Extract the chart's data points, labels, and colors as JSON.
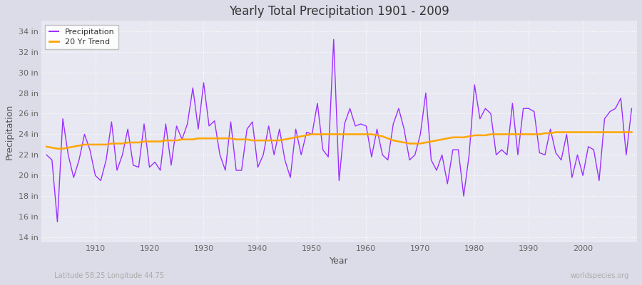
{
  "title": "Yearly Total Precipitation 1901 - 2009",
  "xlabel": "Year",
  "ylabel": "Precipitation",
  "lat_lon_label": "Latitude 58.25 Longitude 44.75",
  "source_label": "worldspecies.org",
  "precip_color": "#9B30FF",
  "trend_color": "#FFA500",
  "fig_bg_color": "#DCDCE8",
  "plot_bg_color": "#E8E8F2",
  "ylim": [
    13.5,
    35.0
  ],
  "yticks": [
    14,
    16,
    18,
    20,
    22,
    24,
    26,
    28,
    30,
    32,
    34
  ],
  "ytick_labels": [
    "14 in",
    "16 in",
    "18 in",
    "20 in",
    "22 in",
    "24 in",
    "26 in",
    "28 in",
    "30 in",
    "32 in",
    "34 in"
  ],
  "xlim": [
    1900,
    2010
  ],
  "xticks": [
    1910,
    1920,
    1930,
    1940,
    1950,
    1960,
    1970,
    1980,
    1990,
    2000
  ],
  "years": [
    1901,
    1902,
    1903,
    1904,
    1905,
    1906,
    1907,
    1908,
    1909,
    1910,
    1911,
    1912,
    1913,
    1914,
    1915,
    1916,
    1917,
    1918,
    1919,
    1920,
    1921,
    1922,
    1923,
    1924,
    1925,
    1926,
    1927,
    1928,
    1929,
    1930,
    1931,
    1932,
    1933,
    1934,
    1935,
    1936,
    1937,
    1938,
    1939,
    1940,
    1941,
    1942,
    1943,
    1944,
    1945,
    1946,
    1947,
    1948,
    1949,
    1950,
    1951,
    1952,
    1953,
    1954,
    1955,
    1956,
    1957,
    1958,
    1959,
    1960,
    1961,
    1962,
    1963,
    1964,
    1965,
    1966,
    1967,
    1968,
    1969,
    1970,
    1971,
    1972,
    1973,
    1974,
    1975,
    1976,
    1977,
    1978,
    1979,
    1980,
    1981,
    1982,
    1983,
    1984,
    1985,
    1986,
    1987,
    1988,
    1989,
    1990,
    1991,
    1992,
    1993,
    1994,
    1995,
    1996,
    1997,
    1998,
    1999,
    2000,
    2001,
    2002,
    2003,
    2004,
    2005,
    2006,
    2007,
    2008,
    2009
  ],
  "precip": [
    22.0,
    21.5,
    15.5,
    25.5,
    22.0,
    19.8,
    21.5,
    24.0,
    22.5,
    20.0,
    19.5,
    21.5,
    25.2,
    20.5,
    22.0,
    24.5,
    21.0,
    20.8,
    25.0,
    20.8,
    21.3,
    20.5,
    25.0,
    21.0,
    24.8,
    23.5,
    25.0,
    28.5,
    24.5,
    29.0,
    24.8,
    25.3,
    22.0,
    20.5,
    25.2,
    20.5,
    20.5,
    24.5,
    25.2,
    20.8,
    22.0,
    24.8,
    22.0,
    24.5,
    21.5,
    19.8,
    24.5,
    22.0,
    24.2,
    24.0,
    27.0,
    22.5,
    21.8,
    33.2,
    19.5,
    25.0,
    26.5,
    24.8,
    25.0,
    24.8,
    21.8,
    24.5,
    22.0,
    21.5,
    25.0,
    26.5,
    24.5,
    21.5,
    22.0,
    24.0,
    28.0,
    21.5,
    20.5,
    22.0,
    19.2,
    22.5,
    22.5,
    18.0,
    22.0,
    28.8,
    25.5,
    26.5,
    26.0,
    22.0,
    22.5,
    22.0,
    27.0,
    22.0,
    26.5,
    26.5,
    26.2,
    22.2,
    22.0,
    24.5,
    22.2,
    21.5,
    24.0,
    19.8,
    22.0,
    20.0,
    22.8,
    22.5,
    19.5,
    25.5,
    26.2,
    26.5,
    27.5,
    22.0,
    26.5
  ],
  "trend": [
    22.8,
    22.7,
    22.6,
    22.6,
    22.7,
    22.8,
    22.9,
    23.0,
    23.0,
    23.0,
    23.0,
    23.0,
    23.1,
    23.1,
    23.1,
    23.2,
    23.2,
    23.2,
    23.3,
    23.3,
    23.3,
    23.3,
    23.4,
    23.4,
    23.4,
    23.5,
    23.5,
    23.5,
    23.6,
    23.6,
    23.6,
    23.6,
    23.6,
    23.6,
    23.6,
    23.5,
    23.5,
    23.5,
    23.4,
    23.4,
    23.4,
    23.4,
    23.4,
    23.4,
    23.5,
    23.6,
    23.7,
    23.8,
    23.9,
    24.0,
    24.0,
    24.0,
    24.0,
    24.0,
    24.0,
    24.0,
    24.0,
    24.0,
    24.0,
    24.0,
    24.0,
    23.9,
    23.8,
    23.6,
    23.4,
    23.3,
    23.2,
    23.1,
    23.1,
    23.1,
    23.2,
    23.3,
    23.4,
    23.5,
    23.6,
    23.7,
    23.7,
    23.7,
    23.8,
    23.9,
    23.9,
    23.9,
    24.0,
    24.0,
    24.0,
    24.0,
    24.0,
    24.0,
    24.0,
    24.0,
    24.0,
    24.0,
    24.1,
    24.1,
    24.2,
    24.2,
    24.2,
    24.2,
    24.2,
    24.2,
    24.2,
    24.2,
    24.2,
    24.2,
    24.2,
    24.2,
    24.2,
    24.2,
    24.2
  ]
}
